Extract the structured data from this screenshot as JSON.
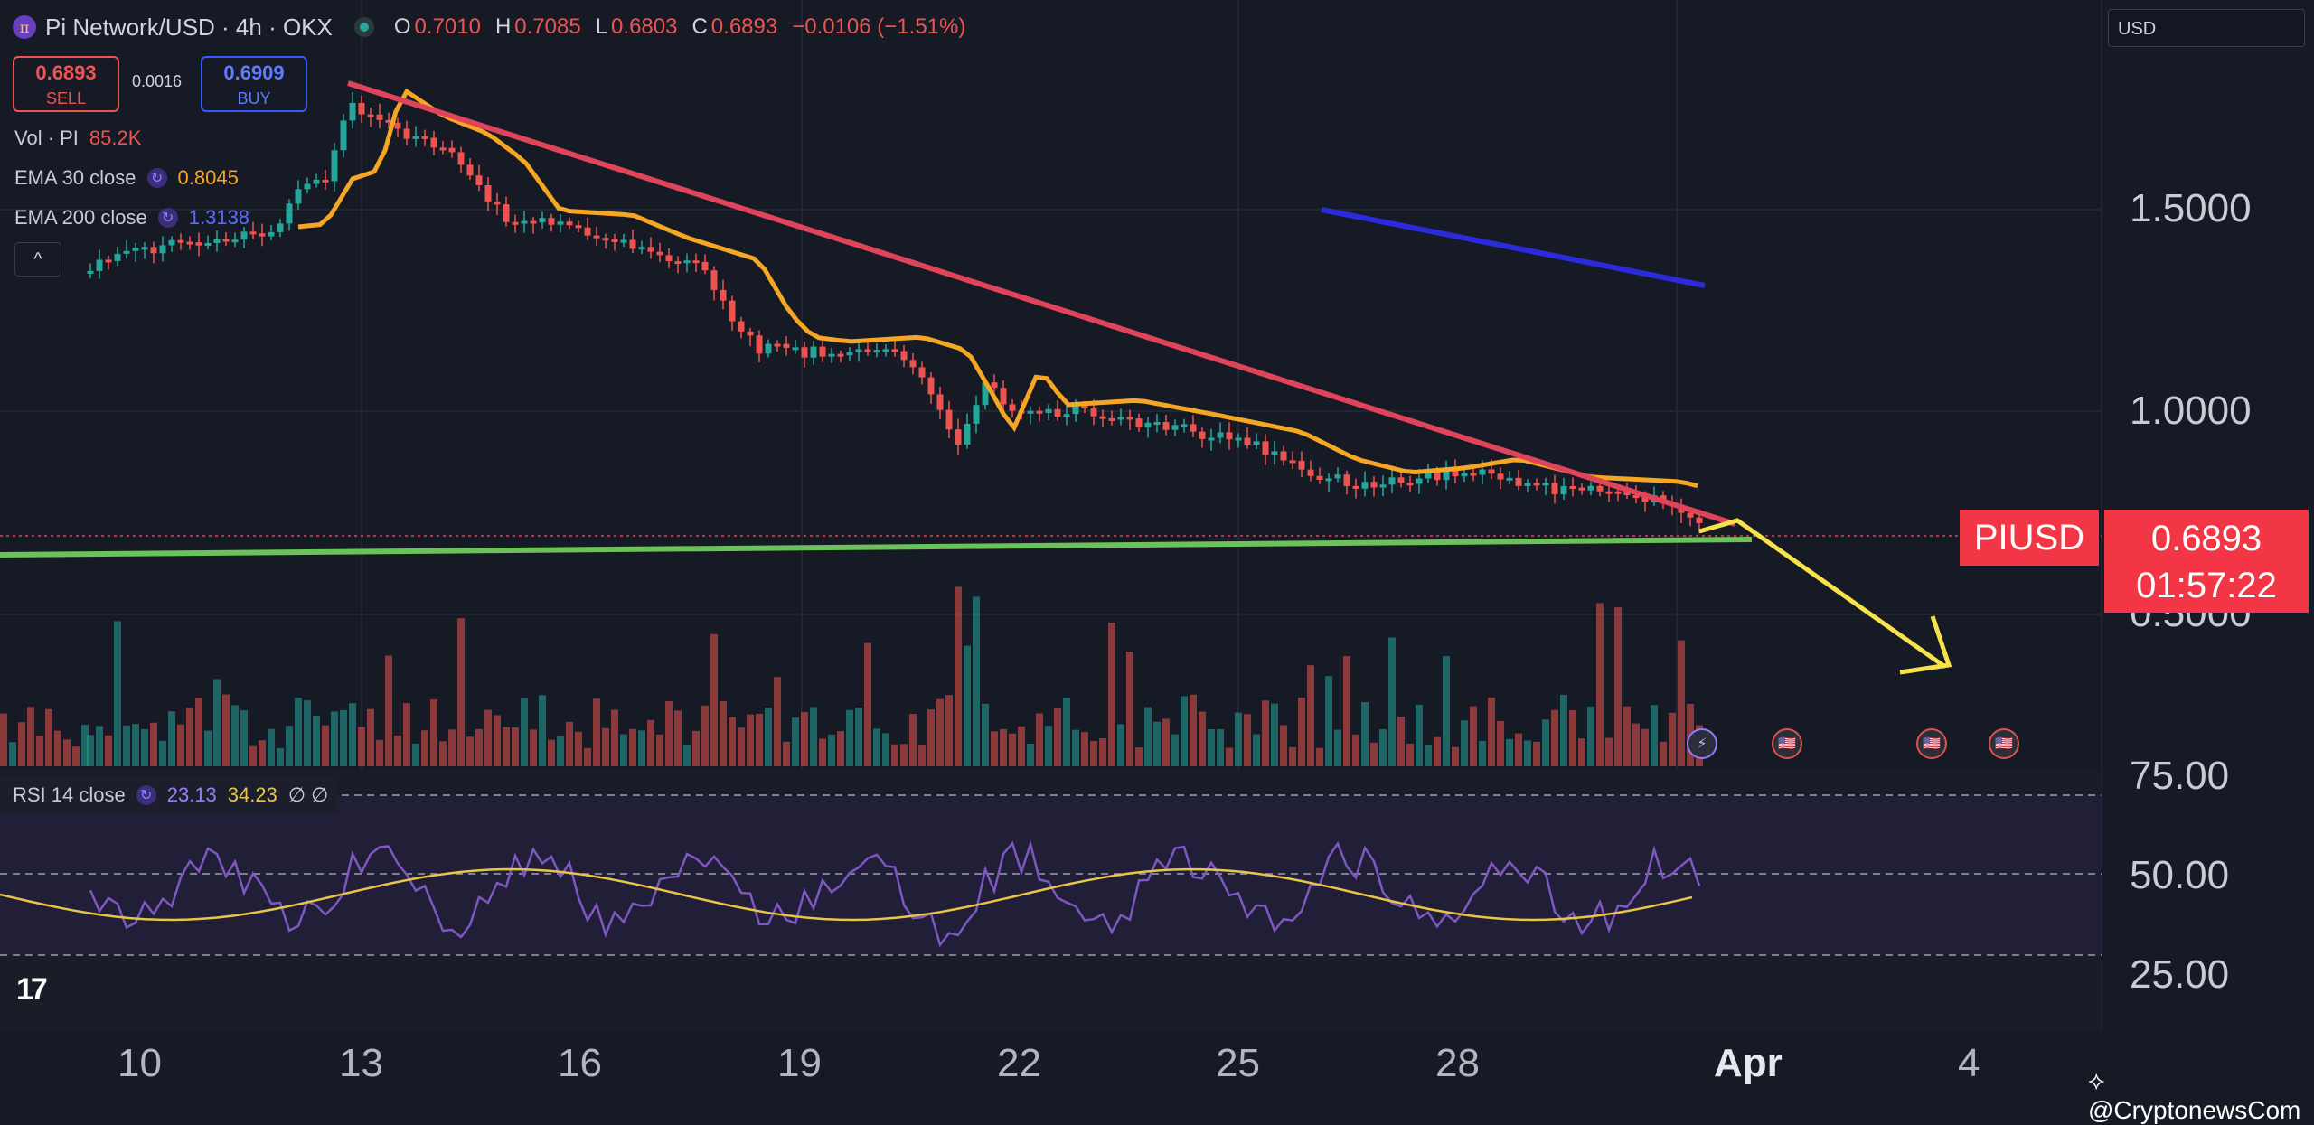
{
  "header": {
    "symbol": "Pi Network/USD · 4h · OKX",
    "ohlc": [
      {
        "k": "O",
        "v": "0.7010"
      },
      {
        "k": "H",
        "v": "0.7085"
      },
      {
        "k": "L",
        "v": "0.6803"
      },
      {
        "k": "C",
        "v": "0.6893"
      }
    ],
    "change": "−0.0106 (−1.51%)"
  },
  "trade": {
    "sell_price": "0.6893",
    "sell_label": "SELL",
    "spread": "0.0016",
    "buy_price": "0.6909",
    "buy_label": "BUY"
  },
  "indicators": {
    "vol_label": "Vol · PI",
    "vol_value": "85.2K",
    "ema30_label": "EMA 30 close",
    "ema30_value": "0.8045",
    "ema200_label": "EMA 200 close",
    "ema200_value": "1.3138",
    "collapse_icon": "^"
  },
  "currency_select": "USD",
  "price_tag": {
    "symbol": "PIUSD",
    "price": "0.6893",
    "countdown": "01:57:22"
  },
  "price_axis": [
    "1.5000",
    "1.0000",
    "0.5000"
  ],
  "rsi": {
    "label": "RSI 14 close",
    "value": "23.13",
    "ma_value": "34.23",
    "extra": "∅  ∅",
    "axis": [
      "75.00",
      "50.00",
      "25.00"
    ]
  },
  "time_axis": [
    "10",
    "13",
    "16",
    "19",
    "22",
    "25",
    "28",
    "Apr",
    "4"
  ],
  "watermark": "@CryptonewsCom",
  "tv_logo": "17",
  "colors": {
    "up": "#26a69a",
    "down": "#ef5350",
    "ema30": "#f5a623",
    "ema200": "#2b2bdc",
    "trend": "#e0445a",
    "support": "#6ac259",
    "arrow": "#f7e24a",
    "rsi": "#7e57c2",
    "rsi_ma": "#e8c547"
  }
}
